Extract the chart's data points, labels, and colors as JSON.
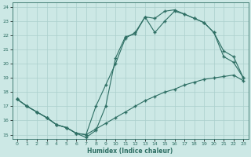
{
  "xlabel": "Humidex (Indice chaleur)",
  "bg_color": "#cce8e5",
  "line_color": "#2d6e63",
  "grid_color": "#aacfcc",
  "xlim": [
    -0.5,
    23.5
  ],
  "ylim": [
    14.7,
    24.3
  ],
  "xticks": [
    0,
    1,
    2,
    3,
    4,
    5,
    6,
    7,
    8,
    9,
    10,
    11,
    12,
    13,
    14,
    15,
    16,
    17,
    18,
    19,
    20,
    21,
    22,
    23
  ],
  "yticks": [
    15,
    16,
    17,
    18,
    19,
    20,
    21,
    22,
    23,
    24
  ],
  "curve1_x": [
    0,
    1,
    2,
    3,
    4,
    5,
    6,
    7,
    8,
    9,
    10,
    11,
    12,
    13,
    14,
    15,
    16,
    17,
    18,
    19,
    20,
    21,
    22,
    23
  ],
  "curve1_y": [
    17.5,
    17.0,
    16.6,
    16.2,
    15.7,
    15.5,
    15.1,
    14.8,
    15.3,
    17.0,
    20.4,
    21.9,
    22.1,
    23.3,
    23.2,
    23.7,
    23.8,
    23.5,
    23.2,
    22.9,
    22.2,
    20.5,
    20.1,
    19.0
  ],
  "curve2_x": [
    0,
    1,
    2,
    3,
    4,
    5,
    6,
    7,
    8,
    9,
    10,
    11,
    12,
    13,
    14,
    15,
    16,
    17,
    18,
    19,
    20,
    21,
    22,
    23
  ],
  "curve2_y": [
    17.5,
    17.0,
    16.6,
    16.2,
    15.7,
    15.5,
    15.1,
    15.0,
    17.0,
    18.5,
    20.0,
    21.8,
    22.2,
    23.3,
    22.2,
    23.0,
    23.7,
    23.5,
    23.2,
    22.9,
    22.2,
    20.9,
    20.5,
    19.0
  ],
  "curve3_x": [
    0,
    1,
    2,
    3,
    4,
    5,
    6,
    7,
    8,
    9,
    10,
    11,
    12,
    13,
    14,
    15,
    16,
    17,
    18,
    19,
    20,
    21,
    22,
    23
  ],
  "curve3_y": [
    17.5,
    17.0,
    16.6,
    16.2,
    15.7,
    15.5,
    15.1,
    15.0,
    15.4,
    15.8,
    16.2,
    16.6,
    17.0,
    17.4,
    17.7,
    18.0,
    18.2,
    18.5,
    18.7,
    18.9,
    19.0,
    19.1,
    19.2,
    18.8
  ]
}
